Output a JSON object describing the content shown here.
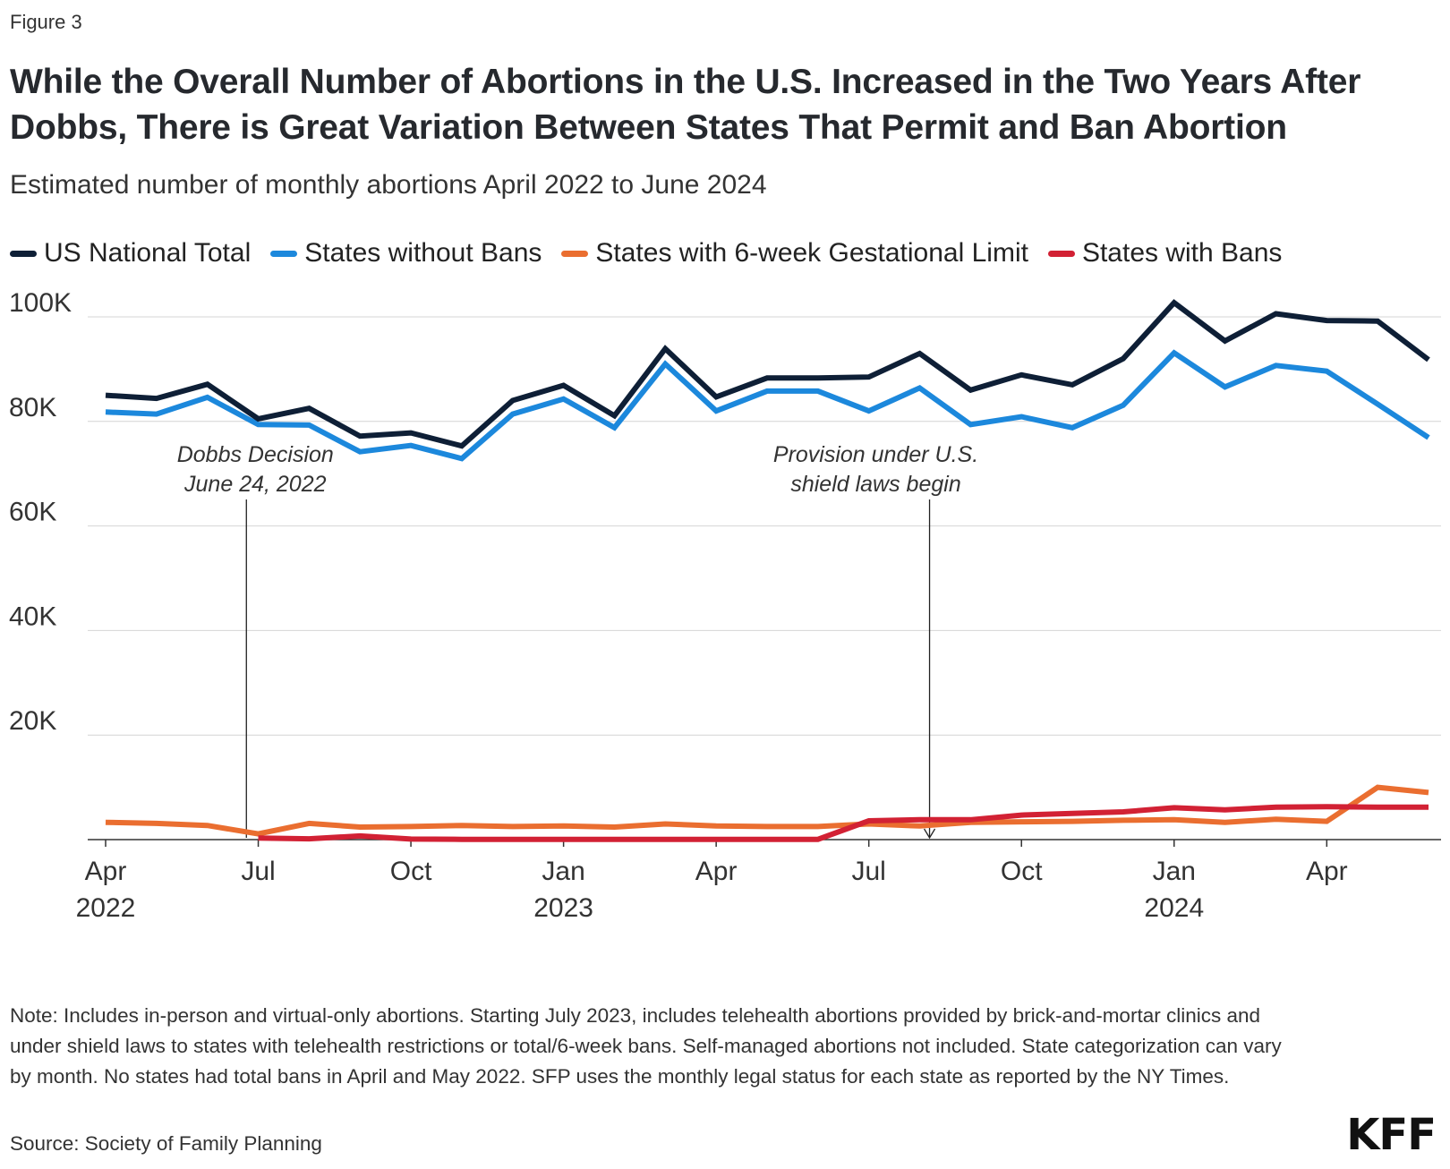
{
  "figure_label": "Figure 3",
  "title": "While the Overall Number of Abortions in the U.S. Increased in the Two Years After Dobbs, There is Great Variation Between States That Permit and Ban Abortion",
  "subtitle": "Estimated number of monthly abortions April 2022 to June 2024",
  "note": "Note: Includes in-person and virtual-only abortions. Starting July 2023, includes telehealth abortions provided by brick-and-mortar clinics and under shield laws to states with telehealth restrictions or total/6-week bans. Self-managed abortions not included. State categorization can vary by month. No states had total bans in April and May 2022. SFP uses the monthly legal status for each state as reported by the NY Times.",
  "source": "Source: Society of Family Planning",
  "logo_text": "KFF",
  "chart_data": {
    "type": "line",
    "x": [
      "2022-04",
      "2022-05",
      "2022-06",
      "2022-07",
      "2022-08",
      "2022-09",
      "2022-10",
      "2022-11",
      "2022-12",
      "2023-01",
      "2023-02",
      "2023-03",
      "2023-04",
      "2023-05",
      "2023-06",
      "2023-07",
      "2023-08",
      "2023-09",
      "2023-10",
      "2023-11",
      "2023-12",
      "2024-01",
      "2024-02",
      "2024-03",
      "2024-04",
      "2024-05",
      "2024-06"
    ],
    "x_ticks": [
      {
        "x": "2022-04",
        "label": "Apr",
        "year": "2022"
      },
      {
        "x": "2022-07",
        "label": "Jul",
        "year": ""
      },
      {
        "x": "2022-10",
        "label": "Oct",
        "year": ""
      },
      {
        "x": "2023-01",
        "label": "Jan",
        "year": "2023"
      },
      {
        "x": "2023-04",
        "label": "Apr",
        "year": ""
      },
      {
        "x": "2023-07",
        "label": "Jul",
        "year": ""
      },
      {
        "x": "2023-10",
        "label": "Oct",
        "year": ""
      },
      {
        "x": "2024-01",
        "label": "Jan",
        "year": "2024"
      },
      {
        "x": "2024-04",
        "label": "Apr",
        "year": ""
      }
    ],
    "y_ticks": [
      {
        "value": 20000,
        "label": "20K"
      },
      {
        "value": 40000,
        "label": "40K"
      },
      {
        "value": 60000,
        "label": "60K"
      },
      {
        "value": 80000,
        "label": "80K"
      },
      {
        "value": 100000,
        "label": "100K"
      }
    ],
    "ylim": [
      0,
      100000
    ],
    "grid": true,
    "legend_position": "top-left",
    "series": [
      {
        "name": "US National Total",
        "color": "#0e1f36",
        "values": [
          85000,
          84400,
          87100,
          80500,
          82500,
          77200,
          77800,
          75300,
          84000,
          86900,
          81100,
          93900,
          84700,
          88300,
          88300,
          88500,
          93000,
          86000,
          88900,
          87000,
          92000,
          102700,
          95400,
          100600,
          99300,
          99200,
          91800
        ]
      },
      {
        "name": "States without Bans",
        "color": "#1c88dc",
        "values": [
          81800,
          81400,
          84600,
          79400,
          79300,
          74200,
          75400,
          72900,
          81400,
          84300,
          78800,
          91000,
          82000,
          85800,
          85800,
          82000,
          86400,
          79400,
          80900,
          78800,
          83100,
          93100,
          86600,
          90700,
          89600,
          83300,
          76900
        ]
      },
      {
        "name": "States with 6-week Gestational Limit",
        "color": "#ea6e30",
        "values": [
          3300,
          3100,
          2700,
          1100,
          3100,
          2400,
          2500,
          2700,
          2500,
          2600,
          2400,
          3000,
          2600,
          2500,
          2500,
          3000,
          2600,
          3300,
          3400,
          3500,
          3700,
          3800,
          3300,
          3900,
          3500,
          10000,
          9000
        ]
      },
      {
        "name": "States with Bans",
        "color": "#d22134",
        "values": [
          null,
          null,
          null,
          300,
          150,
          700,
          100,
          50,
          50,
          50,
          50,
          50,
          50,
          50,
          50,
          3600,
          3800,
          3800,
          4700,
          5000,
          5300,
          6100,
          5700,
          6200,
          6300,
          6200,
          6200
        ]
      }
    ],
    "annotations": [
      {
        "x": "2022-06-24",
        "lines": [
          "Dobbs Decision",
          "June 24, 2022"
        ]
      },
      {
        "x": "2023-08-07",
        "lines": [
          "Provision under U.S.",
          "shield laws begin"
        ]
      }
    ]
  }
}
